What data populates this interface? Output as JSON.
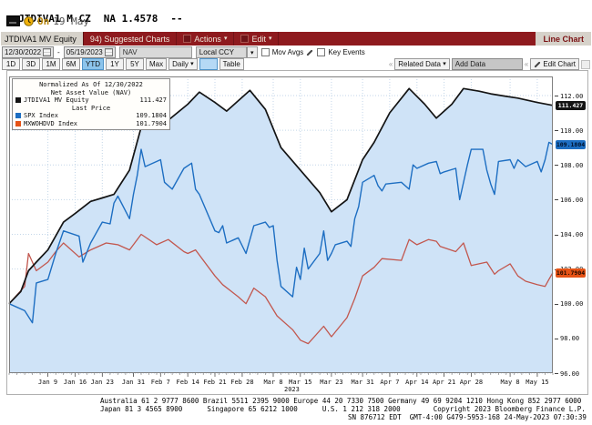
{
  "titlebar": {
    "ticker": "JTDIVA1 M CZ",
    "quote": "NA 1.4578",
    "dashes": "--",
    "delayed_label": "On",
    "delayed_date": "19 May"
  },
  "toolbar": {
    "tab_label": "JTDIVA1 MV Equity",
    "suggested_charts": "94) Suggested Charts",
    "actions": "Actions",
    "edit": "Edit",
    "chart_type": "Line Chart"
  },
  "controls": {
    "date_from": "12/30/2022",
    "date_sep": "-",
    "date_to": "05/19/2023",
    "nav_field": "NAV",
    "currency": "Local CCY",
    "mov_avgs_label": "Mov Avgs",
    "key_events_label": "Key Events"
  },
  "period_row": {
    "buttons": [
      "1D",
      "3D",
      "1M",
      "6M",
      "YTD",
      "1Y",
      "5Y",
      "Max"
    ],
    "active": "YTD",
    "frequency": "Daily",
    "table_label": "Table",
    "related_data": "Related Data",
    "add_data": "Add Data",
    "edit_chart": "Edit Chart"
  },
  "legend": {
    "title": "Normalized As Of 12/30/2022",
    "subtitle": "Net Asset Value (NAV)",
    "last_price_label": "Last Price",
    "items": [
      {
        "name": "JTDIVA1 MV Equity",
        "value": "111.427",
        "color": "#141414"
      },
      {
        "name": "SPX Index",
        "value": "109.1804",
        "color": "#1d6ec2"
      },
      {
        "name": "MXWOHDVD Index",
        "value": "101.7904",
        "color": "#e65316"
      }
    ]
  },
  "chart_data": {
    "type": "line",
    "title": "Normalized As Of 12/30/2022",
    "note": "Three series normalized to 100 on 12/30/2022, daily through 05/19/2023",
    "fill_color": "#cfe3f7",
    "grid_color": "#c3d6e8",
    "frame_color": "#808080",
    "x_axis": {
      "range_days": [
        0,
        140
      ],
      "tick_days": [
        10,
        17,
        24,
        32,
        39,
        46,
        53,
        60,
        68,
        75,
        83,
        91,
        98,
        105,
        112,
        119,
        129,
        136
      ],
      "tick_labels": [
        "Jan 9",
        "Jan 16",
        "Jan 23",
        "Jan 31",
        "Feb 7",
        "Feb 14",
        "Feb 21",
        "Feb 28",
        "Mar 8",
        "Mar 15",
        "Mar 23",
        "Mar 31",
        "Apr 7",
        "Apr 14",
        "Apr 21",
        "Apr 28",
        "May 8",
        "May 15"
      ],
      "year_label": "2023",
      "grid": true
    },
    "y_axis": {
      "min": 96,
      "max": 113.1,
      "ticks": [
        96,
        98,
        100,
        102,
        104,
        106,
        108,
        110,
        112
      ],
      "tick_format": "2dp",
      "position": "right",
      "grid": true
    },
    "series": [
      {
        "name": "JTDIVA1 MV Equity",
        "color": "#141414",
        "line_width": 1.7,
        "area_fill": true,
        "last": 111.427,
        "last_label": "111.427",
        "badge_bg": "#141414",
        "badge_text": "#ffffff",
        "points": [
          [
            0,
            100
          ],
          [
            3,
            100.7
          ],
          [
            5,
            101.9
          ],
          [
            7,
            102.4
          ],
          [
            10,
            103.1
          ],
          [
            14,
            104.7
          ],
          [
            17,
            105.2
          ],
          [
            21,
            105.9
          ],
          [
            24,
            106.1
          ],
          [
            27,
            106.3
          ],
          [
            31,
            107.7
          ],
          [
            35,
            111.0
          ],
          [
            38,
            110.6
          ],
          [
            40,
            110.4
          ],
          [
            46,
            111.5
          ],
          [
            49,
            112.2
          ],
          [
            53,
            111.6
          ],
          [
            56,
            111.1
          ],
          [
            62,
            112.3
          ],
          [
            66,
            111.2
          ],
          [
            70,
            109.0
          ],
          [
            75,
            107.7
          ],
          [
            80,
            106.4
          ],
          [
            83,
            105.3
          ],
          [
            87,
            106.0
          ],
          [
            91,
            108.3
          ],
          [
            94,
            109.3
          ],
          [
            98,
            111.0
          ],
          [
            103,
            112.4
          ],
          [
            107,
            111.5
          ],
          [
            110,
            110.7
          ],
          [
            114,
            111.5
          ],
          [
            117,
            112.4
          ],
          [
            121,
            112.25
          ],
          [
            124,
            112.1
          ],
          [
            128,
            111.95
          ],
          [
            131,
            111.85
          ],
          [
            136,
            111.6
          ],
          [
            140,
            111.43
          ]
        ]
      },
      {
        "name": "SPX Index",
        "color": "#1d6ec2",
        "line_width": 1.4,
        "area_fill": false,
        "last": 109.1804,
        "last_label": "109.1804",
        "badge_bg": "#1d6ec2",
        "badge_text": "#00112a",
        "points": [
          [
            0,
            100
          ],
          [
            4,
            99.6
          ],
          [
            6,
            98.9
          ],
          [
            7,
            101.2
          ],
          [
            10,
            101.4
          ],
          [
            12,
            102.9
          ],
          [
            14,
            104.2
          ],
          [
            18,
            103.9
          ],
          [
            19,
            102.4
          ],
          [
            21,
            103.5
          ],
          [
            24,
            104.7
          ],
          [
            26,
            104.6
          ],
          [
            27,
            105.8
          ],
          [
            28,
            106.2
          ],
          [
            31,
            104.9
          ],
          [
            32,
            106.3
          ],
          [
            33,
            107.4
          ],
          [
            34,
            108.9
          ],
          [
            35,
            107.9
          ],
          [
            39,
            108.3
          ],
          [
            40,
            107.0
          ],
          [
            42,
            106.6
          ],
          [
            45,
            107.8
          ],
          [
            47,
            108.1
          ],
          [
            48,
            106.6
          ],
          [
            49,
            106.3
          ],
          [
            53,
            104.2
          ],
          [
            54,
            104.1
          ],
          [
            55,
            104.5
          ],
          [
            56,
            103.5
          ],
          [
            59,
            103.8
          ],
          [
            61,
            102.9
          ],
          [
            63,
            104.5
          ],
          [
            66,
            104.7
          ],
          [
            67,
            104.4
          ],
          [
            68,
            104.5
          ],
          [
            69,
            102.5
          ],
          [
            70,
            101.0
          ],
          [
            73,
            100.4
          ],
          [
            74,
            102.1
          ],
          [
            75,
            101.4
          ],
          [
            76,
            103.2
          ],
          [
            77,
            102.0
          ],
          [
            80,
            102.9
          ],
          [
            81,
            104.2
          ],
          [
            82,
            102.5
          ],
          [
            83,
            102.9
          ],
          [
            84,
            103.4
          ],
          [
            87,
            103.6
          ],
          [
            88,
            103.3
          ],
          [
            89,
            104.9
          ],
          [
            90,
            105.6
          ],
          [
            91,
            107.0
          ],
          [
            94,
            107.4
          ],
          [
            95,
            106.8
          ],
          [
            96,
            106.5
          ],
          [
            97,
            106.9
          ],
          [
            101,
            107.0
          ],
          [
            103,
            106.6
          ],
          [
            104,
            108.0
          ],
          [
            105,
            107.8
          ],
          [
            108,
            108.1
          ],
          [
            110,
            108.2
          ],
          [
            111,
            107.5
          ],
          [
            112,
            107.6
          ],
          [
            115,
            107.8
          ],
          [
            116,
            106.0
          ],
          [
            118,
            108.0
          ],
          [
            119,
            108.9
          ],
          [
            122,
            108.9
          ],
          [
            123,
            107.7
          ],
          [
            124,
            106.9
          ],
          [
            125,
            106.3
          ],
          [
            126,
            108.2
          ],
          [
            129,
            108.3
          ],
          [
            130,
            107.8
          ],
          [
            131,
            108.3
          ],
          [
            133,
            107.9
          ],
          [
            136,
            108.2
          ],
          [
            137,
            107.6
          ],
          [
            138,
            108.3
          ],
          [
            139,
            109.3
          ],
          [
            140,
            109.18
          ]
        ]
      },
      {
        "name": "MXWOHDVD Index",
        "color": "#c2574e",
        "line_width": 1.3,
        "area_fill": false,
        "last": 101.7904,
        "last_label": "101.7904",
        "badge_bg": "#e65316",
        "badge_text": "#1d0800",
        "points": [
          [
            0,
            100
          ],
          [
            4,
            101.0
          ],
          [
            5,
            102.9
          ],
          [
            7,
            101.9
          ],
          [
            10,
            102.4
          ],
          [
            12,
            103.0
          ],
          [
            14,
            103.5
          ],
          [
            18,
            102.7
          ],
          [
            21,
            103.1
          ],
          [
            25,
            103.5
          ],
          [
            28,
            103.4
          ],
          [
            31,
            103.1
          ],
          [
            34,
            104.0
          ],
          [
            38,
            103.4
          ],
          [
            41,
            103.7
          ],
          [
            45,
            103.0
          ],
          [
            46,
            102.9
          ],
          [
            48,
            103.1
          ],
          [
            53,
            101.6
          ],
          [
            55,
            101.1
          ],
          [
            59,
            100.4
          ],
          [
            61,
            100.0
          ],
          [
            63,
            100.9
          ],
          [
            66,
            100.4
          ],
          [
            69,
            99.3
          ],
          [
            73,
            98.5
          ],
          [
            75,
            97.9
          ],
          [
            77,
            97.7
          ],
          [
            81,
            98.7
          ],
          [
            83,
            98.1
          ],
          [
            87,
            99.2
          ],
          [
            89,
            100.3
          ],
          [
            91,
            101.6
          ],
          [
            94,
            102.1
          ],
          [
            96,
            102.6
          ],
          [
            101,
            102.5
          ],
          [
            103,
            103.7
          ],
          [
            105,
            103.4
          ],
          [
            108,
            103.7
          ],
          [
            110,
            103.6
          ],
          [
            111,
            103.3
          ],
          [
            115,
            103.0
          ],
          [
            117,
            103.5
          ],
          [
            119,
            102.2
          ],
          [
            123,
            102.4
          ],
          [
            125,
            101.7
          ],
          [
            126,
            101.9
          ],
          [
            129,
            102.3
          ],
          [
            131,
            101.6
          ],
          [
            133,
            101.3
          ],
          [
            136,
            101.1
          ],
          [
            138,
            101.0
          ],
          [
            139,
            101.4
          ],
          [
            140,
            101.79
          ]
        ]
      }
    ]
  },
  "footer": {
    "line1": "Australia 61 2 9777 8600 Brazil 5511 2395 9000 Europe 44 20 7330 7500 Germany 49 69 9204 1210 Hong Kong 852 2977 6000",
    "line2": "Japan 81 3 4565 8900      Singapore 65 6212 1000      U.S. 1 212 318 2000        Copyright 2023 Bloomberg Finance L.P.",
    "line3": "SN 876712 EDT  GMT-4:00 G479-5953-168 24-May-2023 07:30:39"
  }
}
